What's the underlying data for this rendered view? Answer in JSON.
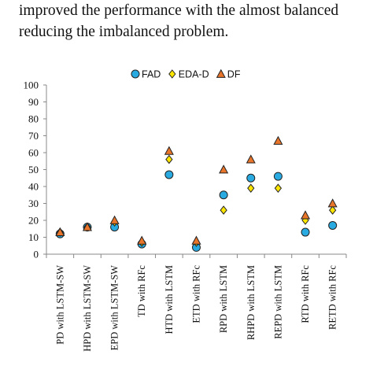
{
  "text_above": {
    "line1": "improved the performance with the almost balanced",
    "line2": "reducing the imbalanced problem."
  },
  "chart_data": {
    "type": "scatter",
    "categories": [
      "PD with LSTM-SW",
      "HPD with LSTM-SW",
      "EPD with LSTM-SW",
      "TD with RFc",
      "HTD with LSTM",
      "ETD with RFc",
      "RPD with LSTM",
      "RHPD with LSTM",
      "REPD with LSTM",
      "RTD with RFc",
      "RETD with RFc"
    ],
    "series": [
      {
        "name": "FAD",
        "marker": "circle",
        "color": "#29ABE2",
        "values": [
          12,
          16,
          16,
          6,
          47,
          4,
          35,
          45,
          46,
          13,
          17
        ]
      },
      {
        "name": "EDA-D",
        "marker": "diamond",
        "color": "#FFE600",
        "values": [
          13,
          16,
          19,
          7,
          56,
          7,
          26,
          39,
          39,
          20,
          26
        ]
      },
      {
        "name": "DF",
        "marker": "triangle",
        "color": "#E8752A",
        "values": [
          13,
          16,
          20,
          8,
          61,
          8,
          50,
          56,
          67,
          23,
          30
        ]
      }
    ],
    "yticks": [
      0,
      10,
      20,
      30,
      40,
      50,
      60,
      70,
      80,
      90,
      100
    ],
    "ylim": [
      0,
      100
    ],
    "grid": false,
    "legend_position": "top-center"
  }
}
